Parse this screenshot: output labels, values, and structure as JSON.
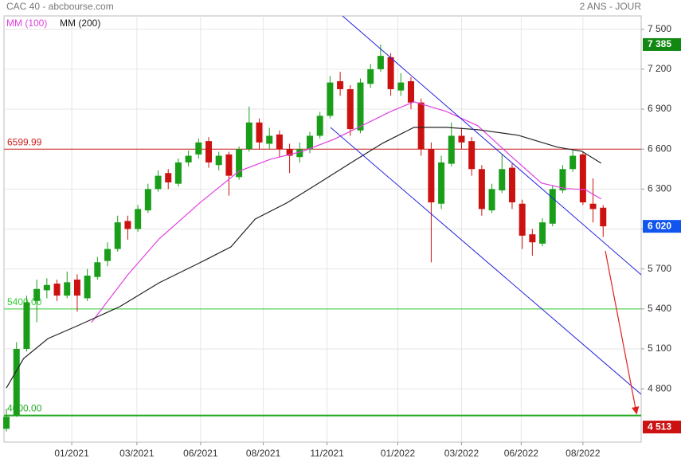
{
  "chart_data": {
    "type": "candlestick",
    "title": "CAC 40 - abcbourse.com",
    "period": "2 ANS - JOUR",
    "open": [
      4500,
      4600,
      5100,
      5460,
      5540,
      5590,
      5500,
      5620,
      5480,
      5640,
      5760,
      5850,
      6060,
      6000,
      6140,
      6300,
      6420,
      6340,
      6500,
      6560,
      6660,
      6480,
      6560,
      6390,
      6600,
      6800,
      6640,
      6710,
      6600,
      6540,
      6600,
      6700,
      6850,
      7110,
      7050,
      6740,
      7090,
      7200,
      7290,
      7040,
      7110,
      6950,
      6600,
      6190,
      6490,
      6700,
      6660,
      6450,
      6140,
      6290,
      6460,
      6190,
      5960,
      5890,
      6040,
      6290,
      6450,
      6560,
      6190,
      6160
    ],
    "high": [
      4650,
      5150,
      5500,
      5620,
      5630,
      5620,
      5680,
      5660,
      5700,
      5790,
      5900,
      6100,
      6100,
      6180,
      6340,
      6440,
      6450,
      6530,
      6590,
      6680,
      6690,
      6580,
      6580,
      6620,
      6920,
      6830,
      6760,
      6740,
      6640,
      6650,
      6730,
      6880,
      7150,
      7180,
      7080,
      7130,
      7240,
      7385,
      7320,
      7170,
      7140,
      6980,
      6650,
      6550,
      6800,
      6760,
      6690,
      6480,
      6340,
      6560,
      6490,
      6220,
      6000,
      6080,
      6330,
      6480,
      6600,
      6580,
      6380,
      6180
    ],
    "low": [
      4480,
      4590,
      5080,
      5300,
      5480,
      5460,
      5480,
      5380,
      5460,
      5620,
      5720,
      5830,
      5920,
      5980,
      6120,
      6280,
      6300,
      6320,
      6470,
      6530,
      6460,
      6440,
      6250,
      6370,
      6580,
      6600,
      6600,
      6540,
      6420,
      6500,
      6570,
      6680,
      6830,
      7000,
      6700,
      6720,
      7060,
      7180,
      7000,
      7000,
      6900,
      6550,
      5750,
      6150,
      6470,
      6600,
      6400,
      6100,
      6120,
      6270,
      6150,
      5850,
      5800,
      5870,
      6020,
      6270,
      6430,
      6180,
      6050,
      5940
    ],
    "close": [
      4590,
      5100,
      5450,
      5550,
      5580,
      5500,
      5600,
      5500,
      5650,
      5750,
      5850,
      6050,
      6000,
      6150,
      6300,
      6400,
      6350,
      6500,
      6550,
      6650,
      6500,
      6550,
      6400,
      6600,
      6800,
      6650,
      6700,
      6600,
      6550,
      6600,
      6700,
      6850,
      7100,
      7050,
      6750,
      7100,
      7200,
      7300,
      7050,
      7100,
      6950,
      6600,
      6200,
      6500,
      6700,
      6650,
      6450,
      6150,
      6300,
      6450,
      6200,
      5950,
      5900,
      6050,
      6300,
      6450,
      6550,
      6200,
      6150,
      6020
    ],
    "up_color": "#1a9e1a",
    "down_color": "#cc1111",
    "lines": [
      {
        "name": "MM (100)",
        "color": "#e040e0",
        "x": [
          8.4,
          12,
          15.1,
          19.1,
          23,
          26.1,
          29.3,
          32.4,
          35.6,
          38,
          40.3,
          43.5,
          46.6,
          49.8,
          52.9,
          55.3,
          57.2,
          58.8
        ],
        "values": [
          5297,
          5656,
          5926,
          6195,
          6434,
          6524,
          6584,
          6674,
          6793,
          6883,
          6955,
          6883,
          6776,
          6554,
          6345,
          6303,
          6297,
          6225
        ]
      },
      {
        "name": "MM (200)",
        "color": "#222222",
        "x": [
          0,
          1.7,
          4.1,
          7.2,
          11.2,
          15.1,
          19.1,
          22.2,
          24.6,
          27.7,
          30.9,
          34,
          37.2,
          40.3,
          43.5,
          46.6,
          50.6,
          54.5,
          56.9,
          58.8
        ],
        "values": [
          4806,
          5027,
          5177,
          5279,
          5417,
          5596,
          5746,
          5866,
          6075,
          6195,
          6345,
          6494,
          6644,
          6763,
          6763,
          6746,
          6704,
          6614,
          6584,
          6494
        ]
      }
    ],
    "levels": [
      {
        "value": 6599.99,
        "label": "6599.99",
        "color": "#cc2222"
      },
      {
        "value": 5400,
        "label": "5400.00",
        "color": "#33cc33"
      },
      {
        "value": 4600,
        "label": "4600.00",
        "color": "#22aa22"
      }
    ],
    "markers": [
      {
        "value": 7385,
        "label": "7 385",
        "color": "#118811"
      },
      {
        "value": 6020,
        "label": "6 020",
        "color": "#1155ee"
      },
      {
        "value": 4513,
        "label": "4 513",
        "color": "#cc1111"
      }
    ],
    "xlim": [
      -0.24,
      62.76
    ],
    "xticks": [
      {
        "value": 6.46,
        "label": "01/2021"
      },
      {
        "value": 12.9,
        "label": "03/2021"
      },
      {
        "value": 19.2,
        "label": "06/2021"
      },
      {
        "value": 25.4,
        "label": "08/2021"
      },
      {
        "value": 31.7,
        "label": "11/2021"
      },
      {
        "value": 38.7,
        "label": "01/2022"
      },
      {
        "value": 45,
        "label": "03/2022"
      },
      {
        "value": 50.9,
        "label": "06/2022"
      },
      {
        "value": 57,
        "label": "08/2022"
      }
    ],
    "ylim": [
      4400,
      7600
    ],
    "yticks": [
      {
        "value": 4800,
        "label": "4 800"
      },
      {
        "value": 5100,
        "label": "5 100"
      },
      {
        "value": 5400,
        "label": "5 400"
      },
      {
        "value": 5700,
        "label": "5 700"
      },
      {
        "value": 6000,
        "label": "6 000"
      },
      {
        "value": 6300,
        "label": "6 300"
      },
      {
        "value": 6600,
        "label": "6 600"
      },
      {
        "value": 6900,
        "label": "6 900"
      },
      {
        "value": 7200,
        "label": "7 200"
      },
      {
        "value": 7500,
        "label": "7 500"
      }
    ],
    "grid": true
  }
}
